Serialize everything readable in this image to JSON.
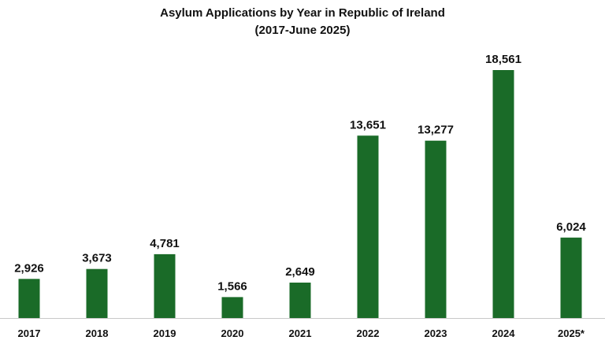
{
  "chart_data": {
    "type": "bar",
    "title": "Asylum Applications by Year in Republic of Ireland",
    "subtitle": "(2017-June 2025)",
    "categories": [
      "2017",
      "2018",
      "2019",
      "2020",
      "2021",
      "2022",
      "2023",
      "2024",
      "2025*"
    ],
    "values": [
      2926,
      3673,
      4781,
      1566,
      2649,
      13651,
      13277,
      18561,
      6024
    ],
    "value_labels": [
      "2,926",
      "3,673",
      "4,781",
      "1,566",
      "2,649",
      "13,651",
      "13,277",
      "18,561",
      "6,024"
    ],
    "xlabel": "",
    "ylabel": "",
    "ylim": [
      0,
      18561
    ],
    "grid": false,
    "legend": "none",
    "bar_color": "#1a6b28",
    "axis_color": "#c8c8c8"
  }
}
